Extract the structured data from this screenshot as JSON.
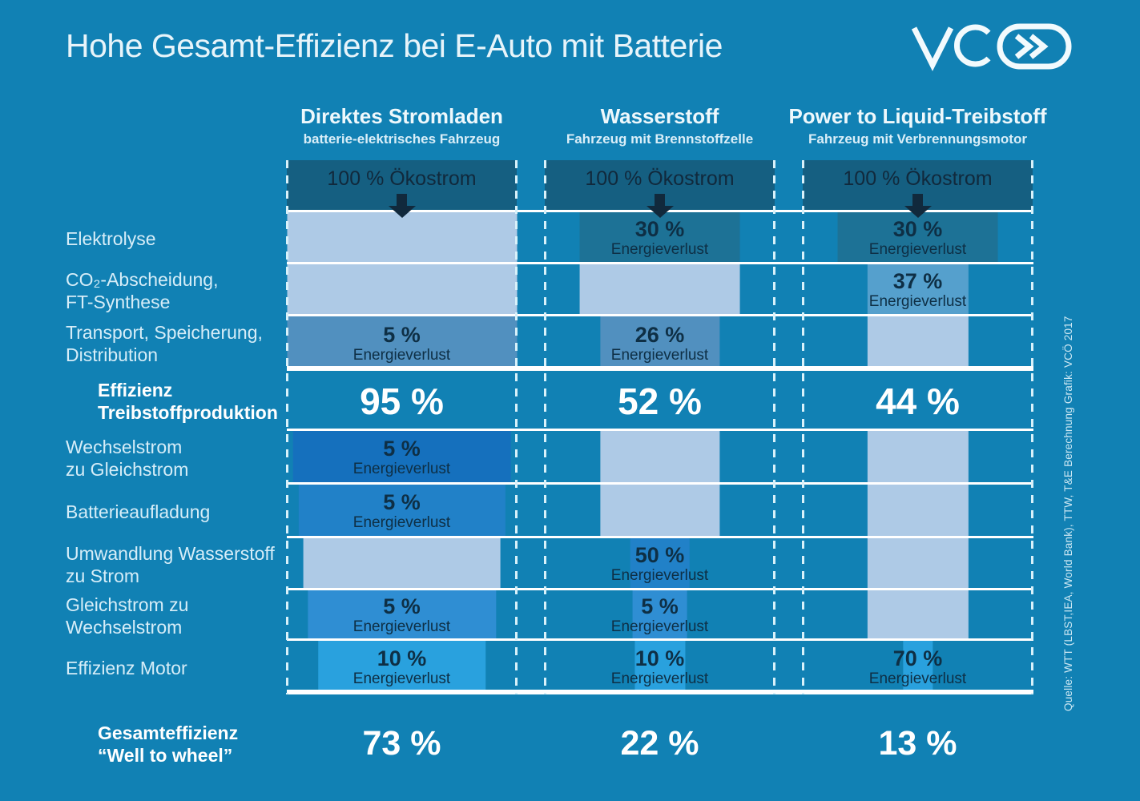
{
  "page": {
    "title": "Hohe Gesamt-Effizienz bei E-Auto mit Batterie",
    "logo": "VCÖ",
    "source_note": "Quelle: WTT (LBST,IEA, World Bank), TTW, T&E Berechnung Grafik: VCÖ 2017"
  },
  "chart_data": {
    "type": "bar",
    "subtype": "energy-flow-funnel-columns",
    "title": "Hohe Gesamt-Effizienz bei E-Auto mit Batterie",
    "unit": "%",
    "input_label": "100 % Ökostrom",
    "loss_text": "Energieverlust",
    "legend_position": "none",
    "grid": "dashed-column-borders",
    "colors": {
      "background": "#1181b4",
      "header": "#155f81",
      "pass": "#aecae6",
      "teal": "#1d7296",
      "steel": "#5190bf",
      "steel2": "#55a0cd",
      "blue_deep": "#1570bd",
      "blue_mid": "#2181c8",
      "blue_light": "#2f8ed3",
      "blue_cyan": "#29a1de",
      "bar_text": "#0e2f45",
      "separator": "#ffffff"
    },
    "rows": [
      {
        "id": "elektrolyse",
        "label_lines": [
          "Elektrolyse"
        ],
        "bold": false
      },
      {
        "id": "co2-abscheidung-ft-synthese",
        "label_lines": [
          "CO₂-Abscheidung,",
          "FT-Synthese"
        ],
        "bold": false
      },
      {
        "id": "transport-speicherung-distribution",
        "label_lines": [
          "Transport, Speicherung,",
          "Distribution"
        ],
        "bold": false
      },
      {
        "id": "effizienz-treibstoffproduktion",
        "label_lines": [
          "Effizienz",
          "Treibstoffproduktion"
        ],
        "bold": true
      },
      {
        "id": "wechselstrom-zu-gleichstrom",
        "label_lines": [
          "Wechselstrom",
          "zu Gleichstrom"
        ],
        "bold": false
      },
      {
        "id": "batterieaufladung",
        "label_lines": [
          "Batterieaufladung"
        ],
        "bold": false
      },
      {
        "id": "umwandlung-wasserstoff-zu-strom",
        "label_lines": [
          "Umwandlung Wasserstoff",
          "zu Strom"
        ],
        "bold": false
      },
      {
        "id": "gleichstrom-zu-wechselstrom",
        "label_lines": [
          "Gleichstrom zu",
          "Wechselstrom"
        ],
        "bold": false
      },
      {
        "id": "effizienz-motor",
        "label_lines": [
          "Effizienz Motor"
        ],
        "bold": false
      },
      {
        "id": "gesamteffizienz",
        "label_lines": [
          "Gesamteffizienz",
          "“Well to wheel”"
        ],
        "bold": true
      }
    ],
    "columns": [
      {
        "id": "direktes-stromladen",
        "title": "Direktes Stromladen",
        "subtitle": "batterie-elektrisches Fahrzeug",
        "input_label": "100 % Ökostrom",
        "cells": [
          {
            "row": "elektrolyse",
            "type": "pass",
            "width_pct": 100
          },
          {
            "row": "co2-abscheidung-ft-synthese",
            "type": "pass",
            "width_pct": 100
          },
          {
            "row": "transport-speicherung-distribution",
            "type": "loss",
            "loss_pct": "5 %",
            "width_pct": 100,
            "color": "steel"
          },
          {
            "row": "wechselstrom-zu-gleichstrom",
            "type": "loss",
            "loss_pct": "5 %",
            "width_pct": 95,
            "color": "blue_deep"
          },
          {
            "row": "batterieaufladung",
            "type": "loss",
            "loss_pct": "5 %",
            "width_pct": 90,
            "color": "blue_mid"
          },
          {
            "row": "umwandlung-wasserstoff-zu-strom",
            "type": "pass",
            "width_pct": 86
          },
          {
            "row": "gleichstrom-zu-wechselstrom",
            "type": "loss",
            "loss_pct": "5 %",
            "width_pct": 82,
            "color": "blue_light"
          },
          {
            "row": "effizienz-motor",
            "type": "loss",
            "loss_pct": "10 %",
            "width_pct": 73,
            "color": "blue_cyan"
          }
        ],
        "production_efficiency": "95 %",
        "total_efficiency": "73 %"
      },
      {
        "id": "wasserstoff",
        "title": "Wasserstoff",
        "subtitle": "Fahrzeug mit Brennstoffzelle",
        "input_label": "100 % Ökostrom",
        "cells": [
          {
            "row": "elektrolyse",
            "type": "loss",
            "loss_pct": "30 %",
            "width_pct": 70,
            "color": "teal"
          },
          {
            "row": "co2-abscheidung-ft-synthese",
            "type": "pass",
            "width_pct": 70
          },
          {
            "row": "transport-speicherung-distribution",
            "type": "loss",
            "loss_pct": "26 %",
            "width_pct": 52,
            "color": "steel"
          },
          {
            "row": "wechselstrom-zu-gleichstrom",
            "type": "pass",
            "width_pct": 52
          },
          {
            "row": "batterieaufladung",
            "type": "pass",
            "width_pct": 52
          },
          {
            "row": "umwandlung-wasserstoff-zu-strom",
            "type": "loss",
            "loss_pct": "50 %",
            "width_pct": 26,
            "color": "blue_mid"
          },
          {
            "row": "gleichstrom-zu-wechselstrom",
            "type": "loss",
            "loss_pct": "5 %",
            "width_pct": 24,
            "color": "blue_light"
          },
          {
            "row": "effizienz-motor",
            "type": "loss",
            "loss_pct": "10 %",
            "width_pct": 22,
            "color": "blue_cyan"
          }
        ],
        "production_efficiency": "52 %",
        "total_efficiency": "22 %"
      },
      {
        "id": "power-to-liquid-treibstoff",
        "title": "Power to Liquid-Treibstoff",
        "subtitle": "Fahrzeug mit Verbrennungsmotor",
        "input_label": "100 % Ökostrom",
        "cells": [
          {
            "row": "elektrolyse",
            "type": "loss",
            "loss_pct": "30 %",
            "width_pct": 70,
            "color": "teal"
          },
          {
            "row": "co2-abscheidung-ft-synthese",
            "type": "loss",
            "loss_pct": "37 %",
            "width_pct": 44,
            "color": "steel2"
          },
          {
            "row": "transport-speicherung-distribution",
            "type": "pass",
            "width_pct": 44
          },
          {
            "row": "wechselstrom-zu-gleichstrom",
            "type": "pass",
            "width_pct": 44
          },
          {
            "row": "batterieaufladung",
            "type": "pass",
            "width_pct": 44
          },
          {
            "row": "umwandlung-wasserstoff-zu-strom",
            "type": "pass",
            "width_pct": 44
          },
          {
            "row": "gleichstrom-zu-wechselstrom",
            "type": "pass",
            "width_pct": 44
          },
          {
            "row": "effizienz-motor",
            "type": "loss",
            "loss_pct": "70 %",
            "width_pct": 13,
            "color": "blue_cyan"
          }
        ],
        "production_efficiency": "44 %",
        "total_efficiency": "13 %"
      }
    ]
  }
}
